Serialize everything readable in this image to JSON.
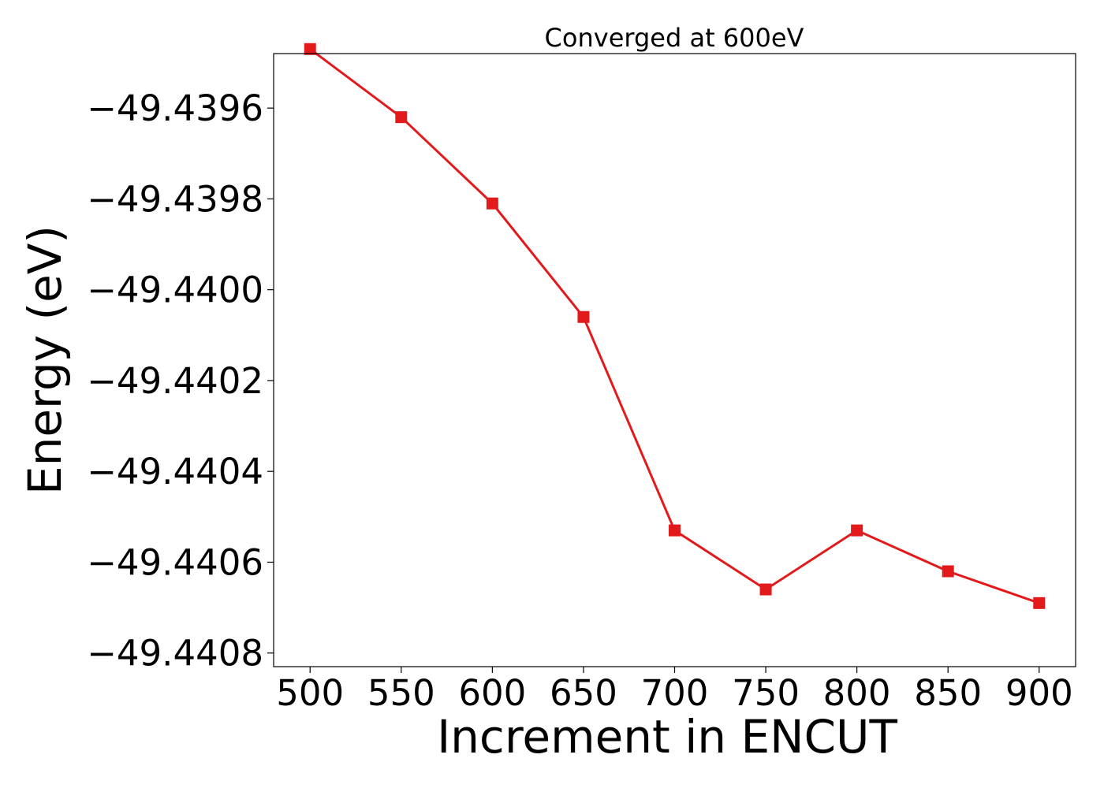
{
  "chart_data": {
    "type": "line",
    "title": "Converged at 600eV",
    "xlabel": "Increment in ENCUT",
    "ylabel": "Energy (eV)",
    "x": [
      500,
      550,
      600,
      650,
      700,
      750,
      800,
      850,
      900
    ],
    "series": [
      {
        "values": [
          -49.43947,
          -49.43962,
          -49.43981,
          -49.44006,
          -49.44053,
          -49.44066,
          -49.44053,
          -49.44062,
          -49.44069
        ]
      }
    ],
    "xticks": [
      500,
      550,
      600,
      650,
      700,
      750,
      800,
      850,
      900
    ],
    "xtick_labels": [
      "500",
      "550",
      "600",
      "650",
      "700",
      "750",
      "800",
      "850",
      "900"
    ],
    "yticks": [
      -49.4396,
      -49.4398,
      -49.44,
      -49.4402,
      -49.4404,
      -49.4406,
      -49.4408
    ],
    "ytick_labels": [
      "−49.4396",
      "−49.4398",
      "−49.4400",
      "−49.4402",
      "−49.4404",
      "−49.4406",
      "−49.4408"
    ],
    "xlim": [
      480,
      920
    ],
    "ylim": [
      -49.44083,
      -49.43948
    ],
    "grid": false,
    "marker": "square",
    "colors": {
      "line": "#e31a1c"
    }
  }
}
